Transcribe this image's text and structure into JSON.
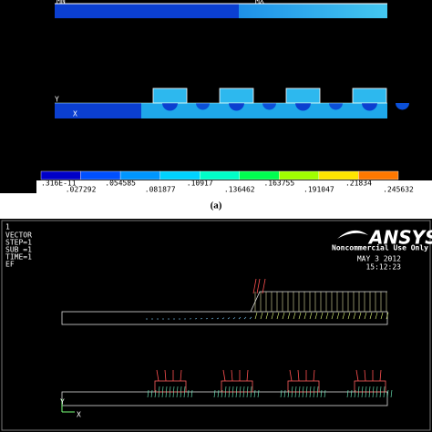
{
  "panel_a": {
    "corner_labels": [
      "MN",
      "MX"
    ],
    "axis_labels": [
      "Y",
      "X"
    ],
    "colorbar_labels": [
      ".316E-11",
      ".027292",
      ".054585",
      ".081877",
      ".10917",
      ".136462",
      ".163755",
      ".191047",
      ".21834",
      ".245632"
    ],
    "caption": "(a)"
  },
  "panel_b": {
    "index": "1",
    "info": [
      "VECTOR",
      "STEP=1",
      "SUB =1",
      "TIME=1",
      "EF"
    ],
    "logo": "ANSYS",
    "license": "Noncommercial Use Only",
    "date": "MAY  3 2012",
    "time": "15:12:23",
    "axis_labels": [
      "Y",
      "X"
    ]
  }
}
